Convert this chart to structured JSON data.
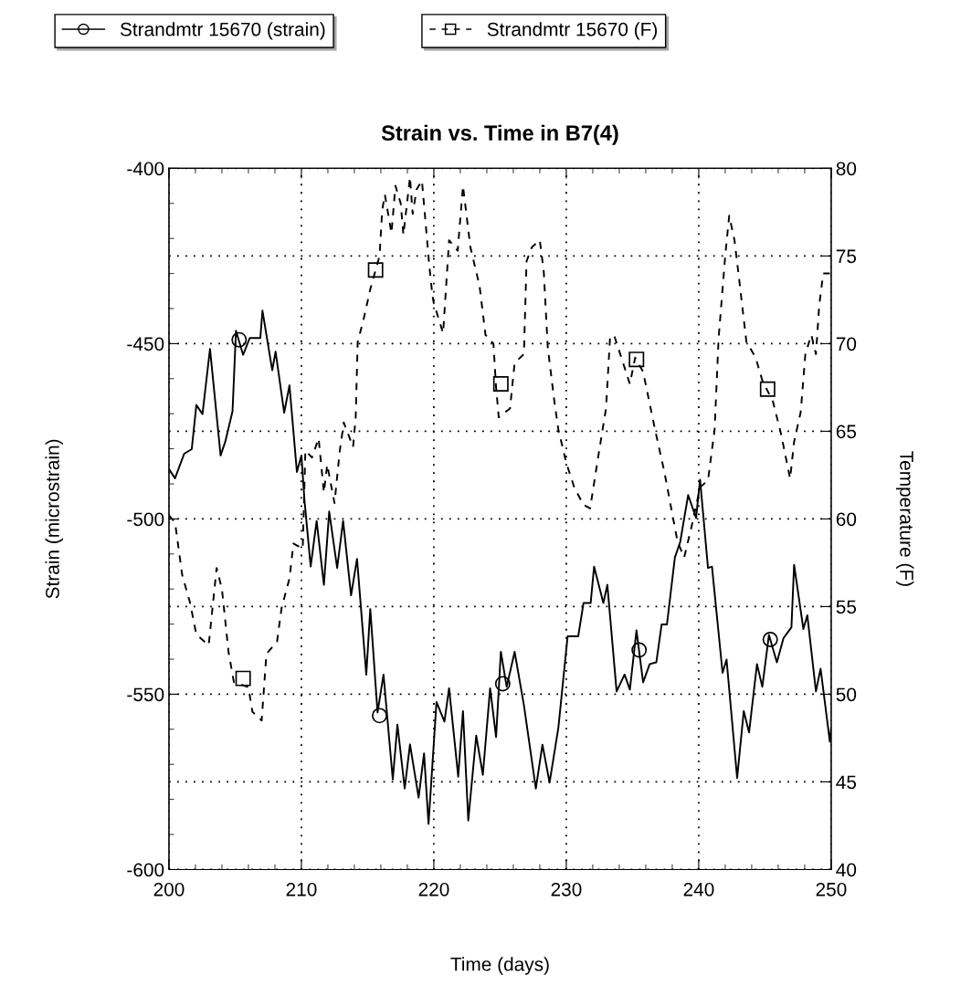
{
  "chart_data": {
    "type": "line",
    "title": "Strain vs. Time in B7(4)",
    "xlabel": "Time (days)",
    "ylabel": "Strain (microstrain)",
    "y2label": "Temperature (F)",
    "xlim": [
      200,
      250
    ],
    "xticks": [
      200,
      210,
      220,
      230,
      240,
      250
    ],
    "ylim": [
      -600,
      -400
    ],
    "yticks": [
      -600,
      -550,
      -500,
      -450,
      -400
    ],
    "y2lim": [
      40,
      80
    ],
    "y2ticks": [
      40,
      45,
      50,
      55,
      60,
      65,
      70,
      75,
      80
    ],
    "grid": true,
    "legend": "top",
    "series": [
      {
        "type": "scatter",
        "color": "#000000",
        "marker": "circle",
        "x": [
          205.3,
          215.9,
          225.2,
          235.5,
          245.4
        ],
        "values": [
          -448.9,
          -556.1,
          -547,
          -537.4,
          -534.4
        ]
      },
      {
        "type": "scatter",
        "color": "#000000",
        "marker": "square",
        "axis": "y2",
        "x": [
          205.6,
          215.6,
          225.06,
          235.3,
          245.2
        ],
        "values": [
          50.9,
          74.2,
          67.7,
          69.1,
          67.4
        ]
      },
      {
        "name": "Strandmtr 15670 (strain)",
        "color": "#000000",
        "line_style": "solid",
        "x": [
          200,
          200.46,
          201.15,
          201.72,
          202.07,
          202.53,
          203.1,
          203.9,
          204.25,
          204.8,
          205.06,
          205.6,
          206.1,
          206.9,
          207.06,
          207.8,
          208.05,
          208.7,
          209.1,
          209.66,
          210,
          210.23,
          210.7,
          211.15,
          211.7,
          212.1,
          212.7,
          213.15,
          213.75,
          214.2,
          214.9,
          215.2,
          215.75,
          216.2,
          216.9,
          217.25,
          217.8,
          218.2,
          218.85,
          219.26,
          219.6,
          220.2,
          220.8,
          221.15,
          221.84,
          222.2,
          222.6,
          223.2,
          223.7,
          224.25,
          224.7,
          225.06,
          225.5,
          226.1,
          226.8,
          227.7,
          228.2,
          228.74,
          229.4,
          230.1,
          230.9,
          231.3,
          231.84,
          232.1,
          232.8,
          233.1,
          233.8,
          234.4,
          234.8,
          235.3,
          235.8,
          236.3,
          236.8,
          237.2,
          237.6,
          238.2,
          238.6,
          239.2,
          239.8,
          240.1,
          240.7,
          241.0,
          241.8,
          242.1,
          242.9,
          243.4,
          243.8,
          244.4,
          244.8,
          245.3,
          245.9,
          246.4,
          247.0,
          247.2,
          247.9,
          248.2,
          248.85,
          249.2,
          249.9,
          250
        ],
        "values": [
          -485.8,
          -488.4,
          -481.4,
          -480.1,
          -467.5,
          -470.1,
          -451.5,
          -481.9,
          -478,
          -469.3,
          -446.3,
          -453.2,
          -448.4,
          -448.4,
          -440.6,
          -457.6,
          -452.3,
          -469.7,
          -461.9,
          -486.6,
          -481.9,
          -494.5,
          -513.6,
          -500.6,
          -518.8,
          -497.9,
          -514,
          -500.6,
          -521.8,
          -511.4,
          -544.4,
          -525.7,
          -555.2,
          -544.4,
          -574.3,
          -558.7,
          -576.9,
          -564.3,
          -579.5,
          -566.9,
          -587,
          -552.2,
          -557.8,
          -548.3,
          -573.5,
          -554.8,
          -586,
          -561.8,
          -573,
          -548.3,
          -562.2,
          -537.9,
          -547.9,
          -537.9,
          -553.1,
          -576.9,
          -564.4,
          -575.2,
          -559.6,
          -533.5,
          -533.5,
          -524,
          -524,
          -513.6,
          -524,
          -518.8,
          -549.2,
          -544.4,
          -548.7,
          -531.8,
          -546.6,
          -541.4,
          -540.9,
          -530.1,
          -530.1,
          -511,
          -506.6,
          -493.2,
          -499.7,
          -488.8,
          -514,
          -513.6,
          -543.9,
          -540.1,
          -573.9,
          -554.8,
          -560.9,
          -541.4,
          -547.9,
          -533.1,
          -540.9,
          -534,
          -530.9,
          -513.1,
          -531.4,
          -527.5,
          -549.2,
          -542.7,
          -563.5,
          -559.6
        ]
      },
      {
        "name": "Strandmtr 15670 (F)",
        "color": "#000000",
        "line_style": "dashed",
        "axis": "y2",
        "x": [
          200,
          200.46,
          201.0,
          201.6,
          202.07,
          203.0,
          203.6,
          204.0,
          204.5,
          204.9,
          206.0,
          206.3,
          207.0,
          207.36,
          208.16,
          208.5,
          209.1,
          209.4,
          210.1,
          210.3,
          210.8,
          211.3,
          211.7,
          211.95,
          212.5,
          212.9,
          213.2,
          213.9,
          214.1,
          214.25,
          214.7,
          215.2,
          215.9,
          216.1,
          216.3,
          216.8,
          217.1,
          217.5,
          217.7,
          218.2,
          218.4,
          218.7,
          219.1,
          219.4,
          219.65,
          219.9,
          220.0,
          220.7,
          221.15,
          221.8,
          222.2,
          222.76,
          223.45,
          223.9,
          224.5,
          224.7,
          224.9,
          225.75,
          226.1,
          226.8,
          227.0,
          227.4,
          228.0,
          228.3,
          228.6,
          229.1,
          229.4,
          230.0,
          230.6,
          231.3,
          231.8,
          232.4,
          233.0,
          233.3,
          233.6,
          234.5,
          234.8,
          235.2,
          235.8,
          236.7,
          237.4,
          237.9,
          238.4,
          238.9,
          239.5,
          240.1,
          240.7,
          241.2,
          241.5,
          242.0,
          242.3,
          242.7,
          243.0,
          243.6,
          244.3,
          244.8,
          245.6,
          246.2,
          246.9,
          247.2,
          247.7,
          248.05,
          248.5,
          248.85,
          249.1,
          249.4,
          249.9
        ],
        "values": [
          60.2,
          59.8,
          56.8,
          55.2,
          53.4,
          52.8,
          57.2,
          56,
          52.4,
          50.7,
          50.4,
          49,
          48.5,
          52.3,
          53,
          54.9,
          56.6,
          58.6,
          58.3,
          63.9,
          63.5,
          64.6,
          61.5,
          63.1,
          60.9,
          63.9,
          65.5,
          64.1,
          65.8,
          70.1,
          71.4,
          73.1,
          75,
          77.6,
          78.5,
          76.3,
          79,
          78,
          76.2,
          79.5,
          77.4,
          78.8,
          79.3,
          76.7,
          74.5,
          72.7,
          72.3,
          70.6,
          75.9,
          75.3,
          79,
          75.5,
          73.3,
          70.5,
          70,
          67.5,
          65.8,
          66.3,
          68.9,
          69.4,
          74.7,
          75.5,
          75.9,
          74.1,
          69.8,
          66.7,
          65.1,
          63.2,
          61.8,
          60.8,
          60.6,
          63.5,
          66.3,
          70.3,
          70.5,
          68.4,
          67.7,
          69.2,
          68.4,
          65.1,
          62.7,
          60.7,
          58.7,
          57.8,
          59.7,
          61.8,
          62.2,
          65.1,
          70.3,
          75,
          77.3,
          75.9,
          74,
          70.1,
          69.2,
          67.9,
          66.7,
          64.9,
          62.3,
          64.4,
          66.1,
          69.4,
          70.5,
          69.4,
          72.2,
          74,
          74
        ]
      }
    ]
  }
}
